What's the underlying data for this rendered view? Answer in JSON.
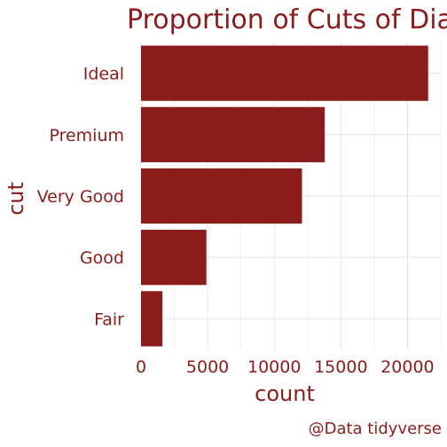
{
  "colors": {
    "bar": "#8b1c1c",
    "text": "#8b1c1c",
    "grid": "#e6e6e6",
    "background": "#ffffff"
  },
  "chart_data": {
    "type": "bar",
    "orientation": "horizontal",
    "title": "Proportion of Cuts of Dia",
    "xlabel": "count",
    "ylabel": "cut",
    "caption": "@Data tidyverse",
    "categories": [
      "Fair",
      "Good",
      "Very Good",
      "Premium",
      "Ideal"
    ],
    "values": [
      1610,
      4906,
      12082,
      13791,
      21551
    ],
    "xlim": [
      0,
      22500
    ],
    "xticks": [
      0,
      5000,
      10000,
      15000,
      20000
    ],
    "xtick_labels": [
      "0",
      "5000",
      "10000",
      "15000",
      "20000"
    ],
    "grid": true,
    "legend": "none"
  }
}
